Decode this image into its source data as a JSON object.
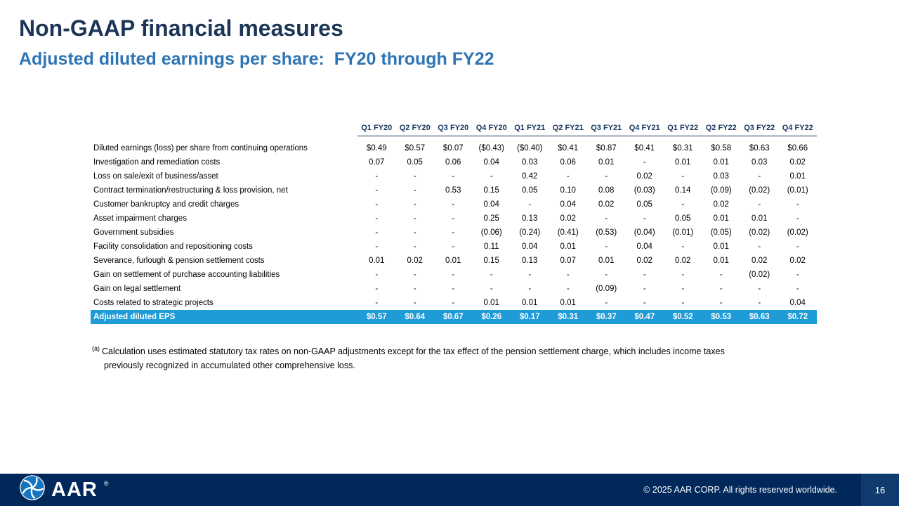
{
  "slide": {
    "title": "Non-GAAP financial measures",
    "subtitle": "Adjusted diluted earnings per share:  FY20 through FY22"
  },
  "table": {
    "columns": [
      "Q1 FY20",
      "Q2 FY20",
      "Q3 FY20",
      "Q4 FY20",
      "Q1 FY21",
      "Q2 FY21",
      "Q3 FY21",
      "Q4 FY21",
      "Q1 FY22",
      "Q2 FY22",
      "Q3 FY22",
      "Q4 FY22"
    ],
    "rows": [
      {
        "label": "Diluted earnings (loss) per share from continuing operations",
        "values": [
          "$0.49",
          "$0.57",
          "$0.07",
          "($0.43)",
          "($0.40)",
          "$0.41",
          "$0.87",
          "$0.41",
          "$0.31",
          "$0.58",
          "$0.63",
          "$0.66"
        ]
      },
      {
        "label": "Investigation and remediation costs",
        "values": [
          "0.07",
          "0.05",
          "0.06",
          "0.04",
          "0.03",
          "0.06",
          "0.01",
          "-",
          "0.01",
          "0.01",
          "0.03",
          "0.02"
        ]
      },
      {
        "label": "Loss on sale/exit of business/asset",
        "values": [
          "-",
          "-",
          "-",
          "-",
          "0.42",
          "-",
          "-",
          "0.02",
          "-",
          "0.03",
          "-",
          "0.01"
        ]
      },
      {
        "label": "Contract termination/restructuring & loss provision, net",
        "values": [
          "-",
          "-",
          "0.53",
          "0.15",
          "0.05",
          "0.10",
          "0.08",
          "(0.03)",
          "0.14",
          "(0.09)",
          "(0.02)",
          "(0.01)"
        ]
      },
      {
        "label": "Customer bankruptcy and credit charges",
        "values": [
          "-",
          "-",
          "-",
          "0.04",
          "-",
          "0.04",
          "0.02",
          "0.05",
          "-",
          "0.02",
          "-",
          "-"
        ]
      },
      {
        "label": "Asset impairment charges",
        "values": [
          "-",
          "-",
          "-",
          "0.25",
          "0.13",
          "0.02",
          "-",
          "-",
          "0.05",
          "0.01",
          "0.01",
          "-"
        ]
      },
      {
        "label": "Government subsidies",
        "values": [
          "-",
          "-",
          "-",
          "(0.06)",
          "(0.24)",
          "(0.41)",
          "(0.53)",
          "(0.04)",
          "(0.01)",
          "(0.05)",
          "(0.02)",
          "(0.02)"
        ]
      },
      {
        "label": "Facility consolidation and repositioning costs",
        "values": [
          "-",
          "-",
          "-",
          "0.11",
          "0.04",
          "0.01",
          "-",
          "0.04",
          "-",
          "0.01",
          "-",
          "-"
        ]
      },
      {
        "label": "Severance, furlough & pension settlement costs",
        "values": [
          "0.01",
          "0.02",
          "0.01",
          "0.15",
          "0.13",
          "0.07",
          "0.01",
          "0.02",
          "0.02",
          "0.01",
          "0.02",
          "0.02"
        ]
      },
      {
        "label": "Gain on settlement of purchase accounting liabilities",
        "values": [
          "-",
          "-",
          "-",
          "-",
          "-",
          "-",
          "-",
          "-",
          "-",
          "-",
          "(0.02)",
          "-"
        ]
      },
      {
        "label": "Gain on legal settlement",
        "values": [
          "-",
          "-",
          "-",
          "-",
          "-",
          "-",
          "(0.09)",
          "-",
          "-",
          "-",
          "-",
          "-"
        ]
      },
      {
        "label": "Costs related to strategic projects",
        "values": [
          "-",
          "-",
          "-",
          "0.01",
          "0.01",
          "0.01",
          "-",
          "-",
          "-",
          "-",
          "-",
          "0.04"
        ]
      }
    ],
    "total_row": {
      "label": "Adjusted diluted EPS",
      "values": [
        "$0.57",
        "$0.64",
        "$0.67",
        "$0.26",
        "$0.17",
        "$0.31",
        "$0.37",
        "$0.47",
        "$0.52",
        "$0.53",
        "$0.63",
        "$0.72"
      ]
    }
  },
  "footnote": {
    "marker": "(a)",
    "line1": "Calculation uses estimated statutory tax rates on non-GAAP adjustments except for the tax effect of the pension settlement charge, which includes income taxes",
    "line2": "previously recognized in accumulated other comprehensive loss."
  },
  "footer": {
    "logo_text": "AAR",
    "logo_registered": "®",
    "copyright": "© 2025 AAR CORP. All rights reserved worldwide.",
    "page_number": "16"
  },
  "colors": {
    "title_navy": "#1C3557",
    "subtitle_blue": "#2E75B6",
    "highlight_blue": "#1F9BD7",
    "footer_navy": "#00285A",
    "page_box_blue": "#0F3B6E",
    "logo_disk_blue": "#1474BE"
  }
}
